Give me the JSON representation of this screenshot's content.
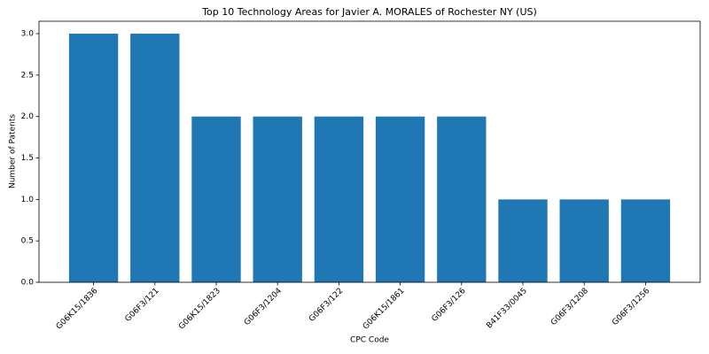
{
  "chart_data": {
    "type": "bar",
    "title": "Top 10 Technology Areas for Javier A. MORALES of Rochester NY (US)",
    "x_label": "CPC Code",
    "y_label": "Number of Patents",
    "categories": [
      "G06K15/1836",
      "G06F3/121",
      "G06K15/1823",
      "G06F3/1204",
      "G06F3/122",
      "G06K15/1861",
      "G06F3/126",
      "B41F33/0045",
      "G06F3/1208",
      "G06F3/1256"
    ],
    "values": [
      3,
      3,
      2,
      2,
      2,
      2,
      2,
      1,
      1,
      1
    ],
    "color": "#1f77b4",
    "ylim": [
      0,
      3.15
    ],
    "yticks": [
      {
        "value": 0,
        "label": "0.0"
      },
      0.5,
      {
        "value": 1,
        "label": "1.0"
      },
      1.5,
      {
        "value": 2,
        "label": "2.0"
      },
      2.5,
      {
        "value": 3,
        "label": "3.0"
      }
    ],
    "grid": false
  }
}
